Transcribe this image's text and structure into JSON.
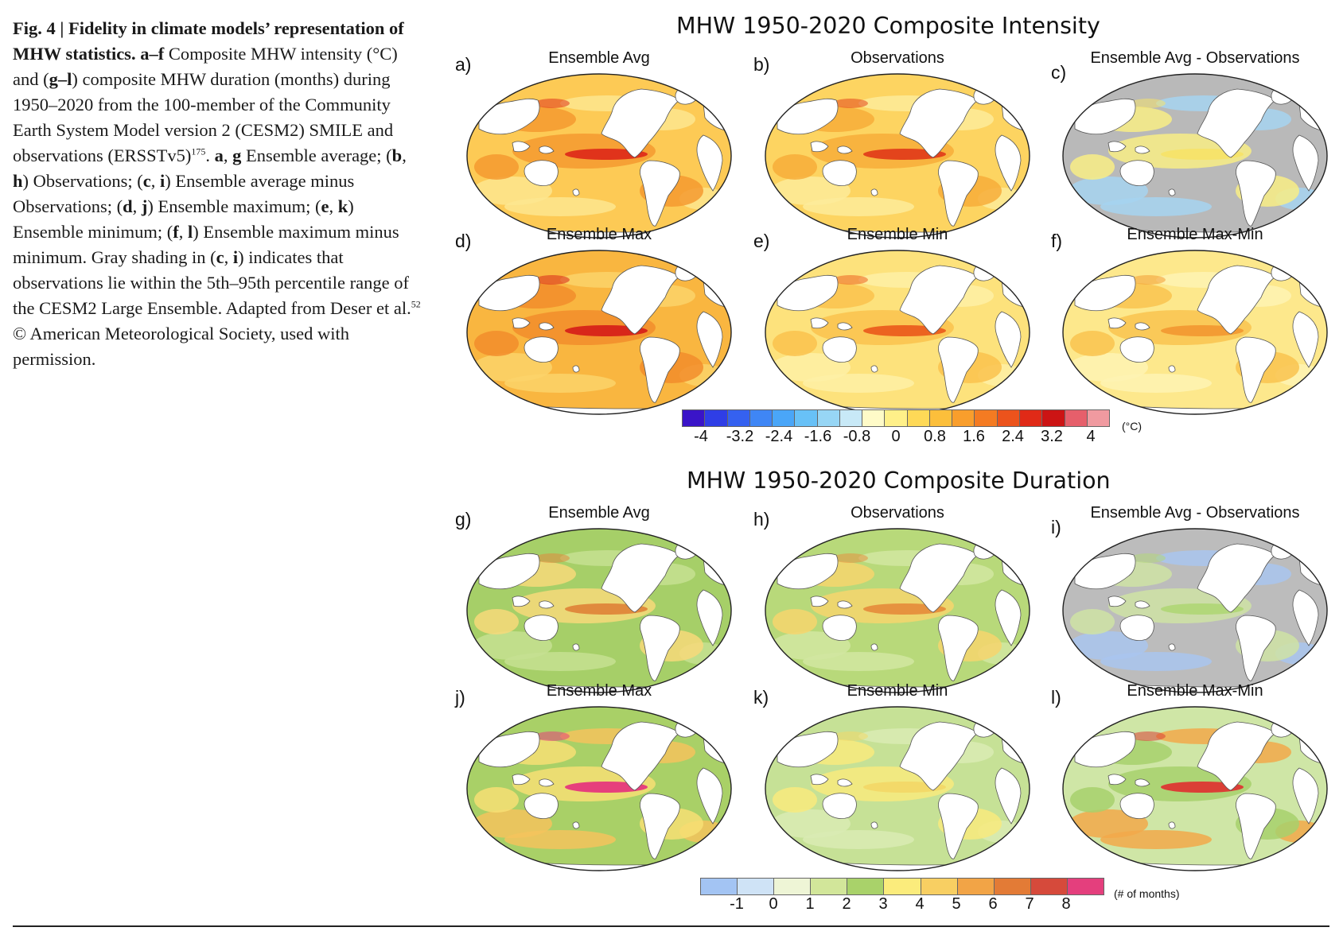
{
  "caption": {
    "lead": "Fig. 4 | Fidelity in climate models’ representation of MHW statistics.",
    "part1_label": "a–f",
    "part1": " Composite MHW intensity (°C) and (",
    "part2_label": "g–l",
    "part2": ") composite MHW duration (months) during 1950–2020 from the 100-member of the Community Earth System Model version 2 (CESM2) SMILE and observations (ERSSTv5)",
    "ref1": "175",
    "part3": ". ",
    "ag": "a",
    "comma1": ", ",
    "g": "g",
    "part4": " Ensemble average; (",
    "b": "b",
    "h": "h",
    "part5": ") Observations; (",
    "c": "c",
    "i": "i",
    "part6": ") Ensemble average minus Observations; (",
    "d": "d",
    "j": "j",
    "part7": ") Ensemble maximum; (",
    "e": "e",
    "k": "k",
    "part8": ") Ensemble minimum; (",
    "f": "f",
    "l": "l",
    "part9": ") Ensemble maximum minus minimum. Gray shading in (",
    "c2": "c",
    "i2": "i",
    "part10": ") indicates that observations lie within the 5th–95th percentile range of the CESM2 Large Ensemble. Adapted from Deser et al.",
    "ref2": "52",
    "part11": " © American Meteorological Society, used with permission."
  },
  "intensity": {
    "title": "MHW 1950-2020 Composite Intensity",
    "panels": [
      {
        "label": "a)",
        "title": "Ensemble Avg"
      },
      {
        "label": "b)",
        "title": "Observations"
      },
      {
        "label": "c)",
        "title": "Ensemble Avg - Observations"
      },
      {
        "label": "d)",
        "title": "Ensemble Max"
      },
      {
        "label": "e)",
        "title": "Ensemble Min"
      },
      {
        "label": "f)",
        "title": "Ensemble Max-Min"
      }
    ],
    "colorbar": {
      "ticks": [
        "-4",
        "-3.2",
        "-2.4",
        "-1.6",
        "-0.8",
        "0",
        "0.8",
        "1.6",
        "2.4",
        "3.2",
        "4"
      ],
      "unit": "(°C)",
      "colors": [
        "#3a14c8",
        "#2f3ee6",
        "#3561f0",
        "#3f86f5",
        "#4aa6f8",
        "#68c1f7",
        "#97d6f5",
        "#c8e9f7",
        "#fffbc8",
        "#fff089",
        "#fed957",
        "#fcbf3b",
        "#f99e2c",
        "#f47b22",
        "#ec531c",
        "#e02a17",
        "#cc1414",
        "#e65f6b",
        "#f09aa0"
      ]
    }
  },
  "duration": {
    "title": "MHW 1950-2020 Composite Duration",
    "panels": [
      {
        "label": "g)",
        "title": "Ensemble Avg"
      },
      {
        "label": "h)",
        "title": "Observations"
      },
      {
        "label": "i)",
        "title": "Ensemble Avg - Observations"
      },
      {
        "label": "j)",
        "title": "Ensemble Max"
      },
      {
        "label": "k)",
        "title": "Ensemble Min"
      },
      {
        "label": "l)",
        "title": "Ensemble Max-Min"
      }
    ],
    "colorbar": {
      "ticks": [
        "-1",
        "0",
        "1",
        "2",
        "3",
        "4",
        "5",
        "6",
        "7",
        "8"
      ],
      "unit": "(# of months)",
      "colors": [
        "#a3c4f3",
        "#cfe3f6",
        "#eef5d6",
        "#d2e69a",
        "#a9d26a",
        "#fbec7c",
        "#f8cf62",
        "#f2a446",
        "#e37b36",
        "#d64a3b",
        "#e43f7d"
      ]
    }
  },
  "map_styles": {
    "a": {
      "base": "#fdca55",
      "warm": "#f49a30",
      "hot": "#e0331b",
      "cool": "#fde68f"
    },
    "b": {
      "base": "#fdd461",
      "warm": "#f7ad3a",
      "hot": "#e3441c",
      "cool": "#fdeb9a"
    },
    "c": {
      "base": "#b9b9b9",
      "warm": "#f8ed85",
      "hot": "#f6e36b",
      "cool": "#a6d3f0"
    },
    "d": {
      "base": "#f9b640",
      "warm": "#f28d2c",
      "hot": "#d8271a",
      "cool": "#fcd36a"
    },
    "e": {
      "base": "#fde27c",
      "warm": "#fac24d",
      "hot": "#ec6320",
      "cool": "#fef0a6"
    },
    "f": {
      "base": "#fde88c",
      "warm": "#f9c34f",
      "hot": "#f39c34",
      "cool": "#fef3b3"
    },
    "g": {
      "base": "#a6cf68",
      "warm": "#f7d97a",
      "hot": "#e08a3d",
      "cool": "#c6e092"
    },
    "h": {
      "base": "#b8d97a",
      "warm": "#f6d56d",
      "hot": "#e6923f",
      "cool": "#d1e6a1"
    },
    "i": {
      "base": "#bcbcbc",
      "warm": "#cfe3a4",
      "hot": "#b2d77a",
      "cool": "#a9c6ef"
    },
    "j": {
      "base": "#a9d067",
      "warm": "#f7df74",
      "hot": "#e6407c",
      "cool": "#f5c35d"
    },
    "k": {
      "base": "#c6e196",
      "warm": "#f8ea7e",
      "hot": "#f3d969",
      "cool": "#d9ebb4"
    },
    "l": {
      "base": "#cfe6a6",
      "warm": "#a7d06c",
      "hot": "#db3f36",
      "cool": "#f2a84a"
    }
  }
}
